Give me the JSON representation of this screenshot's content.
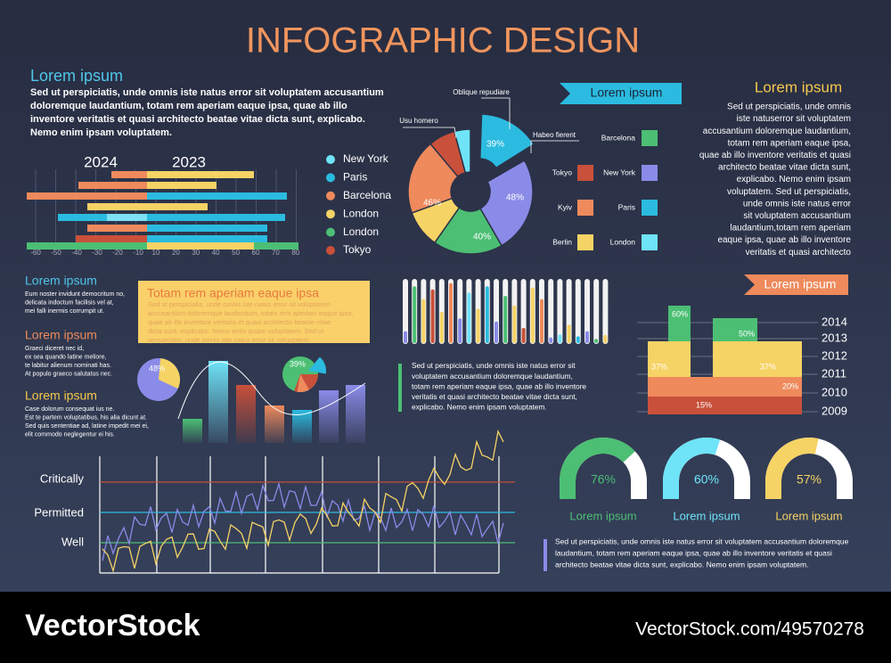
{
  "header": {
    "title": "INFOGRAPHIC DESIGN"
  },
  "intro": {
    "heading": "Lorem ipsum",
    "lines": [
      "Sed ut perspiciatis, unde omnis iste natus error sit voluptatem accusantium",
      "doloremque laudantium, totam rem aperiam eaque ipsa, quae ab illo",
      "inventore veritatis et quasi architecto beatae vitae dicta sunt, explicabo.",
      "Nemo enim ipsam voluptatem."
    ]
  },
  "bar_chart": {
    "years": [
      "2024",
      "2023"
    ],
    "ticks": [
      "-60",
      "-50",
      "-40",
      "-30",
      "-20",
      "-10",
      "10",
      "20",
      "30",
      "40",
      "50",
      "60",
      "70",
      "80"
    ],
    "legend": [
      "New York",
      "Paris",
      "Barcelona",
      "London",
      "London",
      "Tokyo"
    ]
  },
  "donut": {
    "labels": [
      "39%",
      "48%",
      "40%",
      "46%"
    ],
    "callouts": [
      "Oblique repudiare",
      "Usu homero",
      "Habeo fierent"
    ],
    "banner": "Lorem ipsum",
    "legend_right": [
      "Barcelona",
      "New York",
      "Paris",
      "London"
    ],
    "legend_left": [
      "Tokyo",
      "Kyiv",
      "Berlin"
    ]
  },
  "right_block": {
    "heading": "Lorem ipsum",
    "lines": [
      "Sed ut perspiciatis, unde omnis",
      "iste natuserror sit voluptatem",
      "accusantium doloremque laudantium,",
      "totam rem aperiam eaque ipsa,",
      "quae ab illo inventore veritatis et quasi",
      "architecto beatae vitae dicta sunt,",
      "explicabo. Nemo enim ipsam",
      "voluptatem. Sed ut perspiciatis,",
      "unde omnis iste natus error",
      "sit voluptatem accusantium",
      "laudantium,totam rem aperiam",
      "eaque ipsa, quae ab illo inventore",
      "veritatis et quasi architecto"
    ]
  },
  "side_notes": [
    {
      "heading": "Lorem ipsum",
      "lines": [
        "Eum noster invidunt democritum no,",
        "delicata indoctum facilisis vel at,",
        "mei falli inermis corrumpit ut."
      ]
    },
    {
      "heading": "Lorem ipsum",
      "lines": [
        "Graeci diceret nec id,",
        "ex sea quando latine meliore,",
        "te labitur alienum nominati has.",
        "At populo graeco salutatus nec."
      ]
    },
    {
      "heading": "Lorem ipsum",
      "lines": [
        "Case dolorum consequat ius ne.",
        "Est te partem voluptatibus, his alia dicunt at.",
        "Sed quis sententiae ad, latine impedit mei ei,",
        "elit commodo neglegentur ei his."
      ]
    }
  ],
  "note_box": {
    "title": "Totam rem aperiam eaque ipsa",
    "lines": [
      "Sed ut perspiciatis, unde omnis iste natus error sit voluptatem",
      "accusantium doloremque laudantium, totam rem aperiam eaque ipsa,",
      "quae ab illo inventore veritatis et quasi architecto beatae vitae",
      "dicta sunt, explicabo. Nemo enim ipsam voluptatem. Sed ut",
      "perspiciatis, unde omnis iste natus error sit voluptatem"
    ]
  },
  "mini_charts": {
    "labels": [
      "48%",
      "39%"
    ]
  },
  "middle_text": {
    "lines": [
      "Sed ut perspiciatis, unde omnis iste natus error sit",
      "voluptatem accusantium doloremque laudantium,",
      "totam rem aperiam eaque ipsa, quae ab illo inventore",
      "veritatis et quasi architecto beatae vitae dicta sunt,",
      "explicabo. Nemo enim ipsam voluptatem."
    ]
  },
  "stacked": {
    "banner": "Lorem ipsum",
    "years": [
      "2014",
      "2013",
      "2012",
      "2011",
      "2010",
      "2009"
    ],
    "labels": [
      "60%",
      "50%",
      "37%",
      "37%",
      "20%",
      "15%"
    ]
  },
  "gauges": [
    {
      "value": 76,
      "label": "76%",
      "caption": "Lorem ipsum"
    },
    {
      "value": 60,
      "label": "60%",
      "caption": "Lorem ipsum"
    },
    {
      "value": 57,
      "label": "57%",
      "caption": "Lorem ipsum"
    }
  ],
  "bottom_text": {
    "lines": [
      "Sed ut perspiciatis, unde omnis iste natus error sit voluptatem accusantium doloremque",
      "laudantium, totam rem aperiam eaque ipsa, quae ab illo inventore veritatis et quasi",
      "architecto beatae vitae dicta sunt, explicabo. Nemo enim ipsam voluptatem."
    ]
  },
  "line_chart": {
    "levels": [
      "Critically",
      "Permitted",
      "Well"
    ]
  },
  "footer": {
    "brand": "VectorStock",
    "id": "VectorStock.com/49570278"
  }
}
